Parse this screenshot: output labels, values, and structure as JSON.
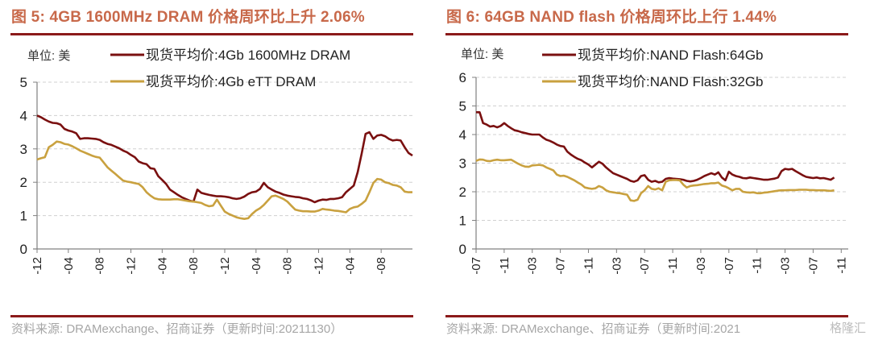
{
  "watermark": "格隆汇",
  "colors": {
    "title": "#c8694a",
    "rule": "#8b1a1a",
    "series_dark": "#7a1010",
    "series_gold": "#c9a13f",
    "grid": "#d0d0d0",
    "source": "#a6a6a6"
  },
  "panels": [
    {
      "title": "图 5:  4GB 1600MHz DRAM 价格周环比上升 2.06%",
      "unit": "单位:  美",
      "source": "资料来源:  DRAMexchange、招商证券（更新时间:20211130）"
    },
    {
      "title": "图 6:  64GB NAND flash 价格周环比上行 1.44%",
      "unit": "单位:  美",
      "source": "资料来源:  DRAMexchange、招商证券（更新时间:2021"
    }
  ],
  "chart_data": [
    {
      "type": "line",
      "title": "图 5:  4GB 1600MHz DRAM 价格周环比上升 2.06%",
      "ylabel": "单位:  美",
      "xlabel": "",
      "ylim": [
        0,
        5
      ],
      "yticks": [
        0,
        1,
        2,
        3,
        4,
        5
      ],
      "grid": true,
      "legend": "top",
      "x_start": "2017-12",
      "x_unit": "months since 2017-12",
      "xlim": [
        0,
        48
      ],
      "xtick_labels": [
        "2017-12",
        "2018-04",
        "2018-08",
        "2018-12",
        "2019-04",
        "2019-08",
        "2019-12",
        "2020-04",
        "2020-08",
        "2020-12",
        "2021-04",
        "2021-08"
      ],
      "xtick_positions": [
        0,
        4,
        8,
        12,
        16,
        20,
        24,
        28,
        32,
        36,
        40,
        44
      ],
      "x": [
        0,
        0.5,
        1,
        1.5,
        2,
        2.5,
        3,
        3.5,
        4,
        4.5,
        5,
        5.5,
        6,
        6.5,
        7,
        7.5,
        8,
        8.5,
        9,
        9.5,
        10,
        10.5,
        11,
        11.5,
        12,
        12.5,
        13,
        13.5,
        14,
        14.5,
        15,
        15.5,
        16,
        16.5,
        17,
        17.5,
        18,
        18.5,
        19,
        19.5,
        20,
        20.5,
        21,
        21.5,
        22,
        22.5,
        23,
        23.5,
        24,
        24.5,
        25,
        25.5,
        26,
        26.5,
        27,
        27.5,
        28,
        28.5,
        29,
        29.5,
        30,
        30.5,
        31,
        31.5,
        32,
        32.5,
        33,
        33.5,
        34,
        34.5,
        35,
        35.5,
        36,
        36.5,
        37,
        37.5,
        38,
        38.5,
        39,
        39.5,
        40,
        40.5,
        41,
        41.5,
        42,
        42.5,
        43,
        43.5,
        44,
        44.5,
        45,
        45.5,
        46,
        46.5,
        47,
        47.5,
        48
      ],
      "series": [
        {
          "name": "现货平均价:4Gb 1600MHz DRAM",
          "color": "#7a1010",
          "values": [
            4.0,
            3.95,
            3.88,
            3.82,
            3.78,
            3.77,
            3.73,
            3.6,
            3.55,
            3.52,
            3.47,
            3.3,
            3.32,
            3.32,
            3.31,
            3.3,
            3.27,
            3.2,
            3.15,
            3.12,
            3.07,
            3.02,
            2.95,
            2.9,
            2.82,
            2.75,
            2.62,
            2.57,
            2.54,
            2.42,
            2.4,
            2.18,
            2.07,
            1.95,
            1.78,
            1.7,
            1.62,
            1.55,
            1.5,
            1.45,
            1.42,
            1.78,
            1.68,
            1.65,
            1.62,
            1.6,
            1.58,
            1.58,
            1.57,
            1.55,
            1.52,
            1.5,
            1.52,
            1.57,
            1.65,
            1.7,
            1.72,
            1.8,
            1.98,
            1.85,
            1.78,
            1.72,
            1.68,
            1.63,
            1.6,
            1.58,
            1.56,
            1.55,
            1.52,
            1.5,
            1.46,
            1.4,
            1.45,
            1.48,
            1.47,
            1.5,
            1.5,
            1.52,
            1.55,
            1.7,
            1.8,
            1.9,
            2.3,
            2.85,
            3.45,
            3.5,
            3.3,
            3.4,
            3.42,
            3.38,
            3.3,
            3.25,
            3.27,
            3.25,
            3.05,
            2.88,
            2.8
          ]
        },
        {
          "name": "现货平均价:4Gb eTT DRAM",
          "color": "#c9a13f",
          "values": [
            2.68,
            2.72,
            2.75,
            3.05,
            3.12,
            3.22,
            3.2,
            3.15,
            3.13,
            3.08,
            3.02,
            2.95,
            2.9,
            2.85,
            2.8,
            2.76,
            2.74,
            2.6,
            2.45,
            2.35,
            2.25,
            2.15,
            2.05,
            2.02,
            2.0,
            1.97,
            1.95,
            1.85,
            1.7,
            1.6,
            1.52,
            1.49,
            1.48,
            1.48,
            1.48,
            1.49,
            1.49,
            1.47,
            1.45,
            1.43,
            1.42,
            1.4,
            1.38,
            1.32,
            1.28,
            1.3,
            1.48,
            1.3,
            1.12,
            1.05,
            1.0,
            0.95,
            0.92,
            0.9,
            0.92,
            1.05,
            1.15,
            1.22,
            1.32,
            1.45,
            1.58,
            1.6,
            1.55,
            1.5,
            1.42,
            1.3,
            1.18,
            1.15,
            1.13,
            1.13,
            1.12,
            1.12,
            1.15,
            1.2,
            1.18,
            1.17,
            1.15,
            1.14,
            1.12,
            1.1,
            1.2,
            1.25,
            1.27,
            1.35,
            1.45,
            1.7,
            1.98,
            2.1,
            2.08,
            2.0,
            1.97,
            1.92,
            1.9,
            1.85,
            1.72,
            1.7,
            1.7
          ]
        }
      ]
    },
    {
      "type": "line",
      "title": "图 6:  64GB NAND flash 价格周环比上行 1.44%",
      "ylabel": "单位:  美",
      "xlabel": "",
      "ylim": [
        0,
        6
      ],
      "yticks": [
        0,
        1,
        2,
        3,
        4,
        5,
        6
      ],
      "grid": true,
      "legend": "top",
      "x_start": "2017-07",
      "x_unit": "months since 2017-07",
      "xlim": [
        0,
        53
      ],
      "xtick_labels": [
        "2017-07",
        "2017-11",
        "2018-03",
        "2018-07",
        "2018-11",
        "2019-03",
        "2019-07",
        "2019-11",
        "2020-03",
        "2020-07",
        "2020-11",
        "2021-03",
        "2021-07",
        "2021-11"
      ],
      "xtick_positions": [
        0,
        4,
        8,
        12,
        16,
        20,
        24,
        28,
        32,
        36,
        40,
        44,
        48,
        52
      ],
      "x": [
        0,
        0.5,
        1,
        1.5,
        2,
        2.5,
        3,
        3.5,
        4,
        4.5,
        5,
        5.5,
        6,
        6.5,
        7,
        7.5,
        8,
        8.5,
        9,
        9.5,
        10,
        10.5,
        11,
        11.5,
        12,
        12.5,
        13,
        13.5,
        14,
        14.5,
        15,
        15.5,
        16,
        16.5,
        17,
        17.5,
        18,
        18.5,
        19,
        19.5,
        20,
        20.5,
        21,
        21.5,
        22,
        22.5,
        23,
        23.5,
        24,
        24.5,
        25,
        25.5,
        26,
        26.5,
        27,
        27.5,
        28,
        28.5,
        29,
        29.5,
        30,
        30.5,
        31,
        31.5,
        32,
        32.5,
        33,
        33.5,
        34,
        34.5,
        35,
        35.5,
        36,
        36.5,
        37,
        37.5,
        38,
        38.5,
        39,
        39.5,
        40,
        40.5,
        41,
        41.5,
        42,
        42.5,
        43,
        43.5,
        44,
        44.5,
        45,
        45.5,
        46,
        46.5,
        47,
        47.5,
        48,
        48.5,
        49,
        49.5,
        50,
        50.5,
        51,
        51.5,
        52,
        52.5,
        53
      ],
      "series": [
        {
          "name": "现货平均价:NAND Flash:64Gb",
          "color": "#7a1010",
          "values": [
            4.78,
            4.78,
            4.4,
            4.35,
            4.28,
            4.3,
            4.25,
            4.3,
            4.4,
            4.3,
            4.22,
            4.15,
            4.12,
            4.08,
            4.05,
            4.02,
            4.0,
            4.0,
            4.0,
            3.9,
            3.82,
            3.78,
            3.72,
            3.65,
            3.6,
            3.58,
            3.4,
            3.3,
            3.22,
            3.15,
            3.1,
            3.02,
            2.95,
            2.85,
            2.95,
            3.05,
            2.98,
            2.85,
            2.75,
            2.65,
            2.6,
            2.55,
            2.5,
            2.45,
            2.38,
            2.35,
            2.4,
            2.55,
            2.58,
            2.42,
            2.35,
            2.38,
            2.33,
            2.35,
            2.45,
            2.48,
            2.46,
            2.45,
            2.44,
            2.42,
            2.38,
            2.36,
            2.38,
            2.42,
            2.48,
            2.55,
            2.6,
            2.65,
            2.6,
            2.68,
            2.5,
            2.4,
            2.7,
            2.6,
            2.55,
            2.52,
            2.48,
            2.47,
            2.5,
            2.48,
            2.46,
            2.44,
            2.42,
            2.42,
            2.44,
            2.46,
            2.5,
            2.72,
            2.8,
            2.78,
            2.8,
            2.72,
            2.65,
            2.58,
            2.52,
            2.5,
            2.48,
            2.5,
            2.47,
            2.48,
            2.45,
            2.42,
            2.5
          ]
        },
        {
          "name": "现货平均价:NAND Flash:32Gb",
          "color": "#c9a13f",
          "values": [
            3.08,
            3.13,
            3.12,
            3.08,
            3.07,
            3.1,
            3.12,
            3.1,
            3.1,
            3.11,
            3.12,
            3.05,
            2.98,
            2.92,
            2.88,
            2.87,
            2.92,
            2.93,
            2.94,
            2.92,
            2.85,
            2.8,
            2.75,
            2.6,
            2.55,
            2.56,
            2.52,
            2.46,
            2.4,
            2.32,
            2.25,
            2.15,
            2.12,
            2.1,
            2.12,
            2.2,
            2.15,
            2.05,
            2.0,
            1.98,
            1.96,
            1.95,
            1.92,
            1.9,
            1.7,
            1.68,
            1.72,
            1.95,
            2.05,
            2.2,
            2.1,
            2.08,
            2.12,
            2.05,
            2.35,
            2.4,
            2.41,
            2.41,
            2.4,
            2.25,
            2.15,
            2.2,
            2.22,
            2.23,
            2.25,
            2.27,
            2.28,
            2.3,
            2.3,
            2.32,
            2.22,
            2.18,
            2.12,
            2.05,
            2.1,
            2.1,
            2.0,
            1.98,
            1.97,
            1.98,
            1.95,
            1.95,
            1.97,
            1.98,
            2.0,
            2.02,
            2.04,
            2.05,
            2.05,
            2.06,
            2.06,
            2.06,
            2.07,
            2.07,
            2.07,
            2.06,
            2.06,
            2.05,
            2.05,
            2.05,
            2.04,
            2.03,
            2.05
          ]
        }
      ]
    }
  ]
}
